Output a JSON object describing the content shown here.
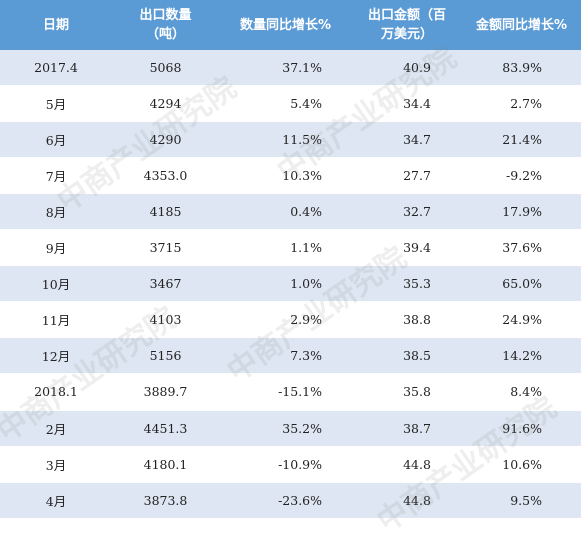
{
  "header": {
    "date": "日期",
    "qty": [
      "出口数量",
      "（吨）"
    ],
    "qty_yoy": "数量同比增长%",
    "amount": [
      "出口金额（百",
      "万美元）"
    ],
    "amount_yoy": "金额同比增长%"
  },
  "rows": [
    {
      "date": "2017.4",
      "qty": "5068",
      "qty_yoy": "37.1%",
      "amount": "40.9",
      "amount_yoy": "83.9%"
    },
    {
      "date": "5月",
      "qty": "4294",
      "qty_yoy": "5.4%",
      "amount": "34.4",
      "amount_yoy": "2.7%"
    },
    {
      "date": "6月",
      "qty": "4290",
      "qty_yoy": "11.5%",
      "amount": "34.7",
      "amount_yoy": "21.4%"
    },
    {
      "date": "7月",
      "qty": "4353.0",
      "qty_yoy": "10.3%",
      "amount": "27.7",
      "amount_yoy": "-9.2%"
    },
    {
      "date": "8月",
      "qty": "4185",
      "qty_yoy": "0.4%",
      "amount": "32.7",
      "amount_yoy": "17.9%"
    },
    {
      "date": "9月",
      "qty": "3715",
      "qty_yoy": "1.1%",
      "amount": "39.4",
      "amount_yoy": "37.6%"
    },
    {
      "date": "10月",
      "qty": "3467",
      "qty_yoy": "1.0%",
      "amount": "35.3",
      "amount_yoy": "65.0%"
    },
    {
      "date": "11月",
      "qty": "4103",
      "qty_yoy": "2.9%",
      "amount": "38.8",
      "amount_yoy": "24.9%"
    },
    {
      "date": "12月",
      "qty": "5156",
      "qty_yoy": "7.3%",
      "amount": "38.5",
      "amount_yoy": "14.2%"
    },
    {
      "date": "2018.1",
      "qty": "3889.7",
      "qty_yoy": "-15.1%",
      "amount": "35.8",
      "amount_yoy": "8.4%"
    },
    {
      "date": "2月",
      "qty": "4451.3",
      "qty_yoy": "35.2%",
      "amount": "38.7",
      "amount_yoy": "91.6%"
    },
    {
      "date": "3月",
      "qty": "4180.1",
      "qty_yoy": "-10.9%",
      "amount": "44.8",
      "amount_yoy": "10.6%"
    },
    {
      "date": "4月",
      "qty": "3873.8",
      "qty_yoy": "-23.6%",
      "amount": "44.8",
      "amount_yoy": "9.5%"
    }
  ],
  "watermark": "中商产业研究院",
  "colors": {
    "header_bg": "#5b9bd5",
    "stripe": "#dde6f2",
    "header_text": "#ffffff"
  }
}
